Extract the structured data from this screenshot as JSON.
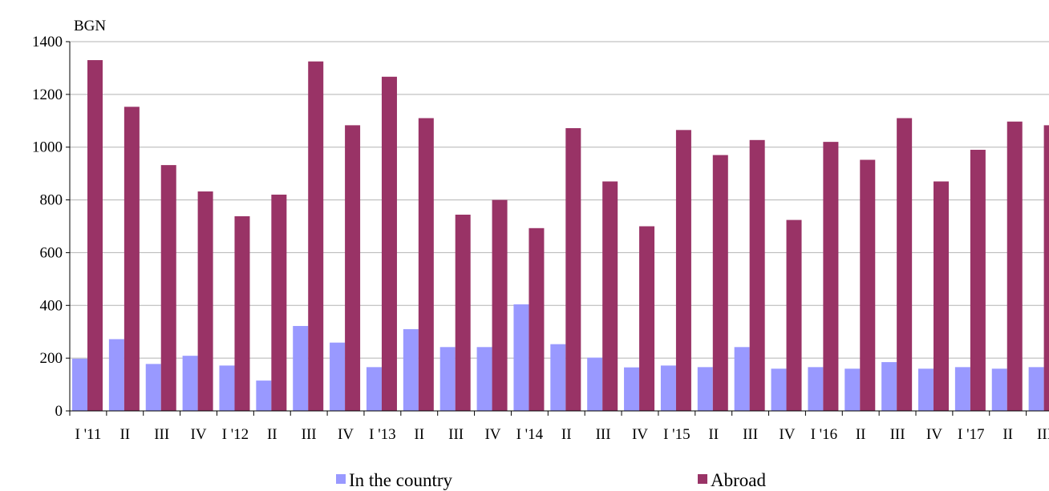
{
  "chart_data": {
    "type": "bar",
    "ylabel": "BGN",
    "ylim": [
      0,
      1400
    ],
    "yticks": [
      0,
      200,
      400,
      600,
      800,
      1000,
      1200,
      1400
    ],
    "grid": true,
    "legend": "bottom",
    "categories": [
      "I '11",
      "II",
      "III",
      "IV",
      "I '12",
      "II",
      "III",
      "IV",
      "I '13",
      "II",
      "III",
      "IV",
      "I '14",
      "II",
      "III",
      "IV",
      "I '15",
      "II",
      "III",
      "IV",
      "I '16",
      "II",
      "III",
      "IV",
      "I '17",
      "II",
      "III"
    ],
    "series": [
      {
        "name": "In the country",
        "color": "#9999ff",
        "values": [
          198,
          272,
          178,
          209,
          172,
          115,
          322,
          259,
          166,
          310,
          242,
          242,
          404,
          253,
          202,
          165,
          172,
          166,
          242,
          160,
          166,
          160,
          185,
          160,
          166,
          160,
          166
        ]
      },
      {
        "name": "Abroad",
        "color": "#993366",
        "values": [
          1330,
          1153,
          932,
          832,
          738,
          820,
          1325,
          1083,
          1267,
          1110,
          744,
          800,
          693,
          1072,
          870,
          700,
          1065,
          970,
          1027,
          724,
          1020,
          952,
          1110,
          870,
          990,
          1097,
          1083
        ]
      }
    ]
  }
}
